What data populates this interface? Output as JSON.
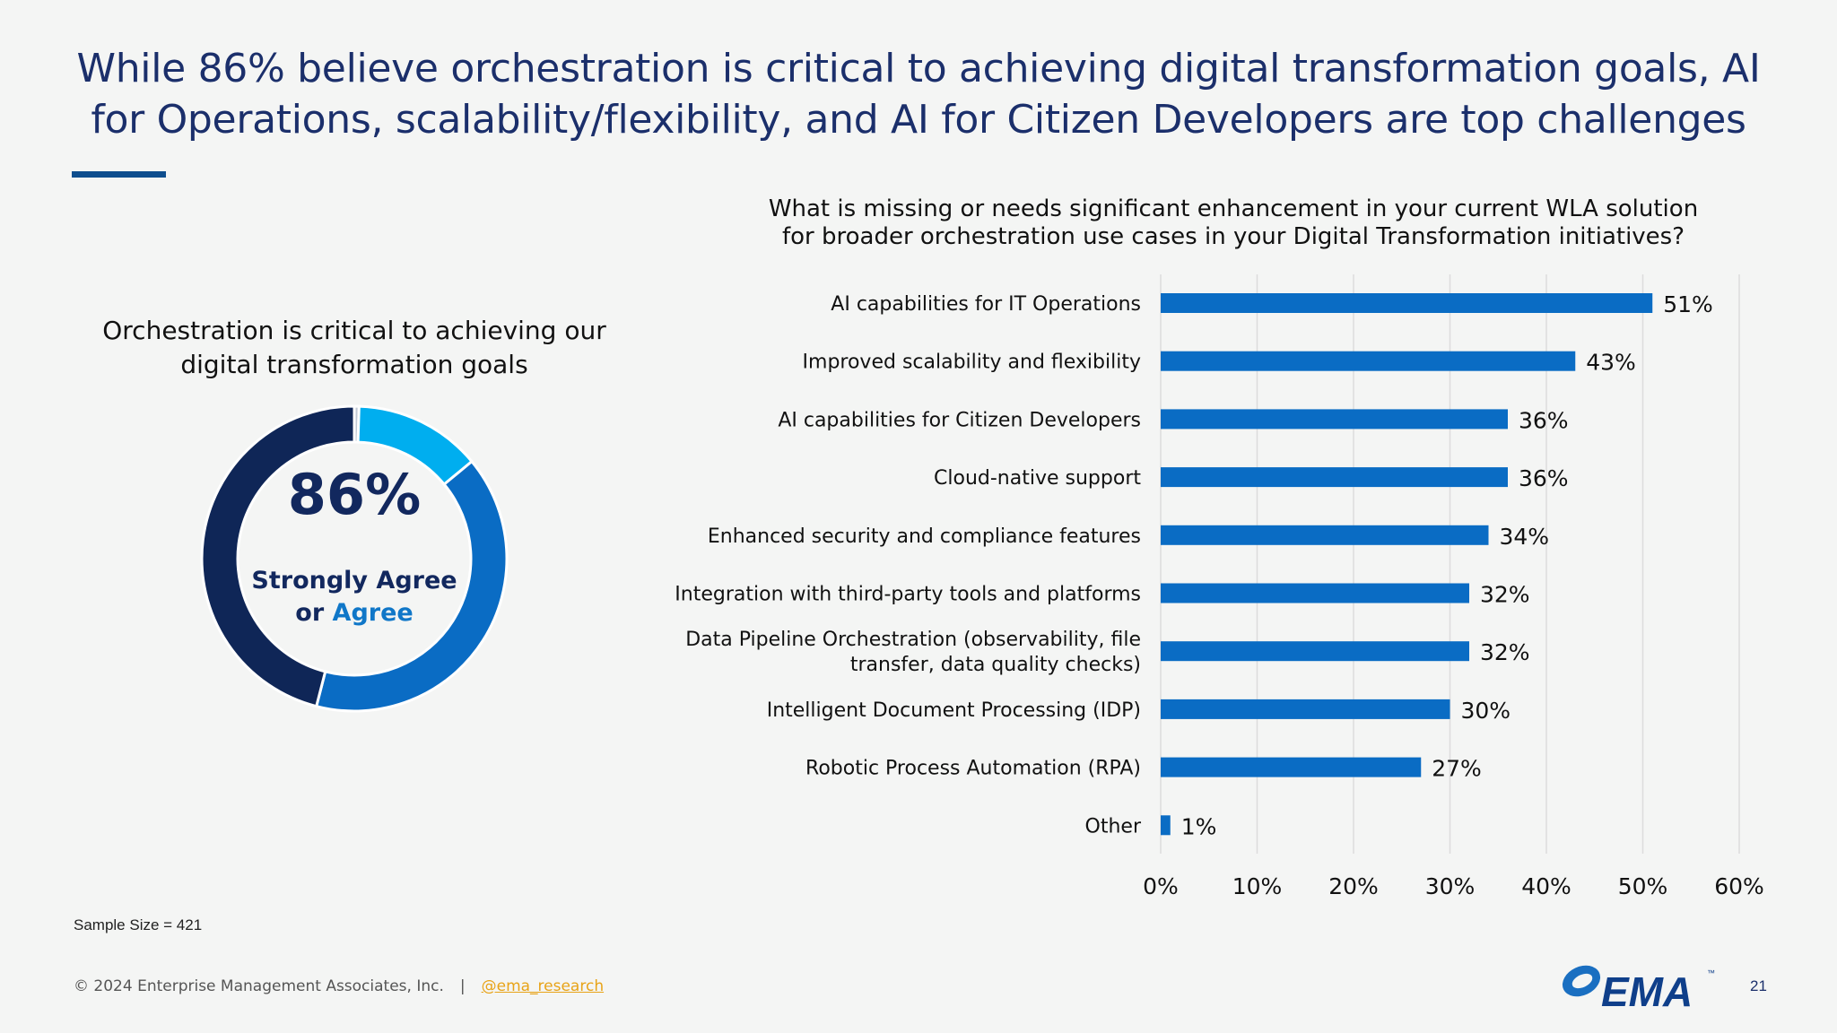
{
  "slide": {
    "title": "While 86% believe orchestration is critical to achieving digital transformation goals, AI for Operations, scalability/flexibility, and AI for Citizen Developers are top challenges",
    "page_number": "21"
  },
  "donut": {
    "title": "Orchestration is critical to achieving our digital transformation goals",
    "value_label": "86%",
    "label_line1": "Strongly Agree",
    "label_or": "or ",
    "label_agree": "Agree"
  },
  "bar_chart": {
    "question": "What is missing or needs significant enhancement in your current WLA solution for broader orchestration use cases in your Digital Transformation initiatives?"
  },
  "chart_data": [
    {
      "type": "pie",
      "title": "Orchestration is critical to achieving our digital transformation goals",
      "center_label": "86% Strongly Agree or Agree",
      "slices": [
        {
          "value": 0.5,
          "color": "#c0c8d4"
        },
        {
          "value": 13.5,
          "color": "#00aeef"
        },
        {
          "value": 40,
          "color": "#0a6cc4"
        },
        {
          "value": 46,
          "color": "#0f2657"
        }
      ]
    },
    {
      "type": "bar",
      "orientation": "horizontal",
      "title": "What is missing or needs significant enhancement in your current WLA solution for broader orchestration use cases in your Digital Transformation initiatives?",
      "categories": [
        [
          "AI capabilities for IT Operations"
        ],
        [
          "Improved scalability and flexibility"
        ],
        [
          "AI capabilities for Citizen Developers"
        ],
        [
          "Cloud-native support"
        ],
        [
          "Enhanced security and compliance features"
        ],
        [
          "Integration with third-party tools and platforms"
        ],
        [
          "Data Pipeline Orchestration (observability, file",
          "transfer, data quality checks)"
        ],
        [
          "Intelligent Document Processing (IDP)"
        ],
        [
          "Robotic Process Automation (RPA)"
        ],
        [
          "Other"
        ]
      ],
      "values": [
        51,
        43,
        36,
        36,
        34,
        32,
        32,
        30,
        27,
        1
      ],
      "value_labels": [
        "51%",
        "43%",
        "36%",
        "36%",
        "34%",
        "32%",
        "32%",
        "30%",
        "27%",
        "1%"
      ],
      "xlim": [
        0,
        60
      ],
      "xticks": [
        "0%",
        "10%",
        "20%",
        "30%",
        "40%",
        "50%",
        "60%"
      ],
      "bar_color": "#0a6cc4",
      "grid": true
    }
  ],
  "footer": {
    "sample_size": "Sample Size = 421",
    "copyright": "© 2024 Enterprise Management Associates, Inc.",
    "separator": "|",
    "handle": "@ema_research"
  },
  "logo": {
    "text": "EMA",
    "tm": "™"
  }
}
